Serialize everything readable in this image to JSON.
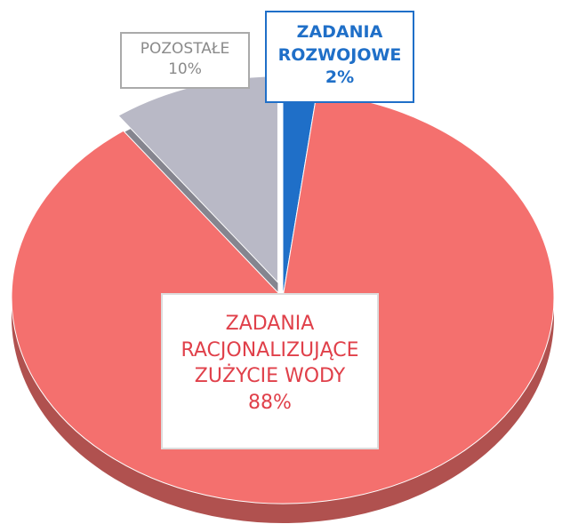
{
  "chart_data": {
    "type": "pie",
    "categories": [
      "ZADANIA ROZWOJOWE",
      "ZADANIA RACJONALIZUJĄCE ZUŻYCIE WODY",
      "POZOSTAŁE"
    ],
    "values": [
      2,
      88,
      10
    ],
    "value_labels": [
      "2%",
      "88%",
      "10%"
    ],
    "colors": [
      "#1f6fc8",
      "#f4706e",
      "#b9b9c6"
    ]
  }
}
